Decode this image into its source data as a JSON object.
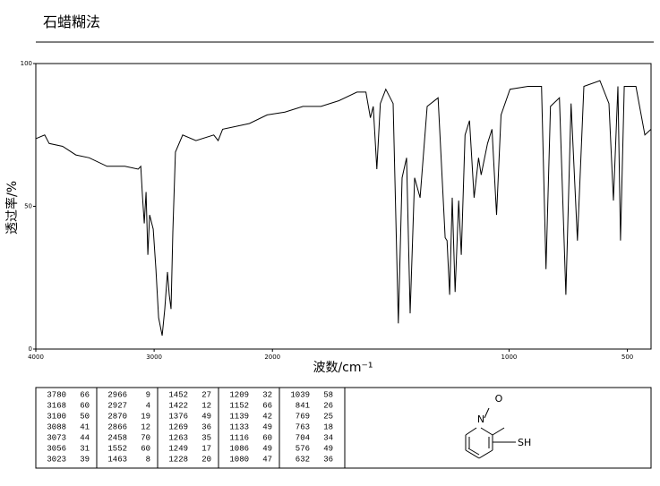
{
  "chart_data": {
    "type": "line",
    "title": "石蜡糊法",
    "xlabel": "波数/cm⁻¹",
    "ylabel": "透过率/%",
    "xlim": [
      4000,
      400
    ],
    "ylim": [
      0,
      100
    ],
    "xticks": [
      4000,
      3000,
      2000,
      1000,
      500
    ],
    "yticks": [
      0,
      50,
      100
    ],
    "color": "#000000",
    "x": [
      4000,
      3925,
      3887,
      3774,
      3662,
      3549,
      3398,
      3248,
      3135,
      3113,
      3098,
      3083,
      3068,
      3053,
      3038,
      3008,
      2985,
      2962,
      2932,
      2910,
      2887,
      2872,
      2857,
      2842,
      2820,
      2759,
      2647,
      2496,
      2459,
      2421,
      2195,
      2045,
      1947,
      1871,
      1795,
      1719,
      1643,
      1605,
      1586,
      1574,
      1559,
      1544,
      1521,
      1490,
      1468,
      1452,
      1433,
      1418,
      1399,
      1376,
      1346,
      1300,
      1270,
      1262,
      1251,
      1240,
      1228,
      1213,
      1202,
      1186,
      1167,
      1148,
      1129,
      1118,
      1091,
      1072,
      1053,
      1034,
      996,
      920,
      863,
      844,
      825,
      787,
      760,
      738,
      711,
      684,
      616,
      578,
      559,
      540,
      529,
      513,
      464,
      426,
      400
    ],
    "values": [
      73.7,
      75,
      72,
      71,
      68,
      67,
      64,
      64,
      63,
      64,
      53,
      44,
      55,
      33,
      47,
      42,
      28,
      11,
      4.7,
      14,
      27,
      19,
      14,
      41,
      69,
      75,
      73,
      75,
      73,
      77,
      79,
      82,
      83,
      85,
      85,
      87,
      90,
      90,
      81,
      85,
      63,
      86,
      91,
      86,
      9,
      60,
      67,
      12.5,
      60,
      53,
      85,
      88,
      39,
      38,
      19,
      53,
      20,
      52,
      33,
      75,
      80,
      53,
      67,
      61,
      72,
      77,
      47,
      82,
      91,
      92,
      92,
      28,
      85,
      88,
      19,
      86,
      38,
      92,
      94,
      86,
      52,
      92,
      38,
      92,
      92,
      75,
      77
    ]
  },
  "peak_table": {
    "rows": [
      [
        "3780",
        "66",
        "2966",
        "9",
        "1452",
        "27",
        "1209",
        "32",
        "1039",
        "58"
      ],
      [
        "3168",
        "60",
        "2927",
        "4",
        "1422",
        "12",
        "1152",
        "66",
        "841",
        "26"
      ],
      [
        "3100",
        "50",
        "2870",
        "19",
        "1376",
        "49",
        "1139",
        "42",
        "769",
        "25"
      ],
      [
        "3088",
        "41",
        "2866",
        "12",
        "1269",
        "36",
        "1133",
        "49",
        "763",
        "18"
      ],
      [
        "3073",
        "44",
        "2458",
        "70",
        "1263",
        "35",
        "1116",
        "60",
        "704",
        "34"
      ],
      [
        "3056",
        "31",
        "1552",
        "60",
        "1249",
        "17",
        "1086",
        "49",
        "576",
        "49"
      ],
      [
        "3023",
        "39",
        "1463",
        "8",
        "1228",
        "20",
        "1080",
        "47",
        "632",
        "36"
      ]
    ]
  },
  "structure": {
    "oxygen": "O",
    "nitrogen": "N",
    "substituent": "SH"
  }
}
